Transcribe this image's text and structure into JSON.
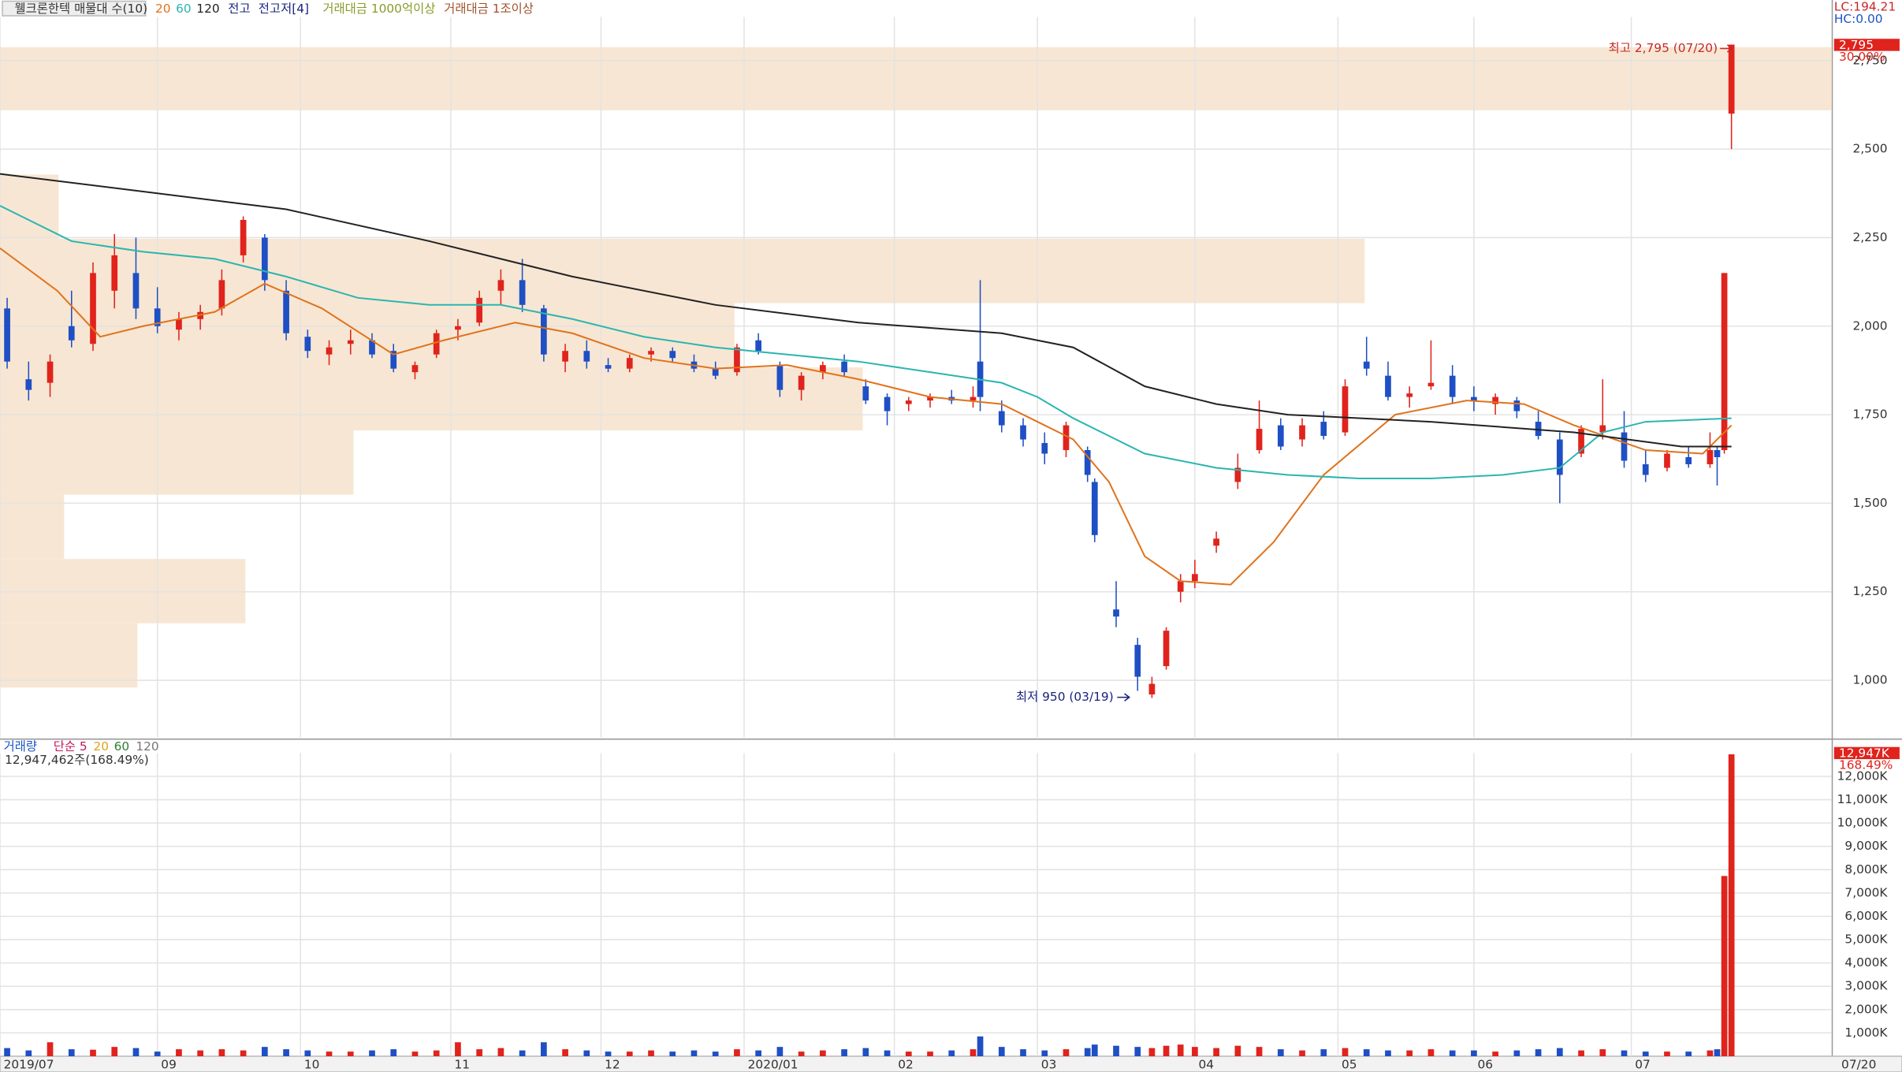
{
  "chart_data": {
    "type": "candlestick",
    "title": "웰크론한텍 매물대 수(10)",
    "legend_items": [
      "전고",
      "전고저[4]",
      "거래대금 1000억이상",
      "거래대금 1조이상"
    ],
    "lc_label": "LC:194.21",
    "hc_label": "HC:0.00",
    "annotations": [
      "최고 2,795 (07/20)",
      "최저 950 (03/19)"
    ],
    "last_price_label": "2,795",
    "last_change_label": "30.00%",
    "last_volume_label": "12,947K",
    "volume_ratio_label": "168.49%",
    "volume_legend": [
      "거래량",
      "단순 5",
      "20",
      "60",
      "120"
    ],
    "volume_info": "12,947,462주(168.49%)",
    "cursor_date": "07/20",
    "up_color": "#e0231c",
    "down_color": "#1f4fc4",
    "xlim": [
      0,
      256
    ],
    "xticks": [
      {
        "value": 0,
        "label": "2019/07"
      },
      {
        "value": 22,
        "label": "09"
      },
      {
        "value": 42,
        "label": "10"
      },
      {
        "value": 63,
        "label": "11"
      },
      {
        "value": 84,
        "label": "12"
      },
      {
        "value": 104,
        "label": "2020/01"
      },
      {
        "value": 125,
        "label": "02"
      },
      {
        "value": 145,
        "label": "03"
      },
      {
        "value": 167,
        "label": "04"
      },
      {
        "value": 187,
        "label": "05"
      },
      {
        "value": 206,
        "label": "06"
      },
      {
        "value": 228,
        "label": "07"
      }
    ],
    "ylim": [
      839,
      2873
    ],
    "yticks": [
      {
        "value": 1000,
        "label": "1,000"
      },
      {
        "value": 1250,
        "label": "1,250"
      },
      {
        "value": 1500,
        "label": "1,500"
      },
      {
        "value": 1750,
        "label": "1,750"
      },
      {
        "value": 2000,
        "label": "2,000"
      },
      {
        "value": 2250,
        "label": "2,250"
      },
      {
        "value": 2500,
        "label": "2,500"
      },
      {
        "value": 2750,
        "label": "2,750"
      }
    ],
    "volume_ylim": [
      0,
      13000
    ],
    "volume_yticks": [
      {
        "value": 1000,
        "label": "1,000K"
      },
      {
        "value": 2000,
        "label": "2,000K"
      },
      {
        "value": 3000,
        "label": "3,000K"
      },
      {
        "value": 4000,
        "label": "4,000K"
      },
      {
        "value": 5000,
        "label": "5,000K"
      },
      {
        "value": 6000,
        "label": "6,000K"
      },
      {
        "value": 7000,
        "label": "7,000K"
      },
      {
        "value": 8000,
        "label": "8,000K"
      },
      {
        "value": 9000,
        "label": "9,000K"
      },
      {
        "value": 10000,
        "label": "10,000K"
      },
      {
        "value": 11000,
        "label": "11,000K"
      },
      {
        "value": 12000,
        "label": "12,000K"
      }
    ],
    "volume_profile": {
      "color": "#f7e6d3",
      "xlim": [
        0,
        100
      ],
      "bins": [
        979.5,
        1161,
        1342.5,
        1524,
        1705.5,
        1883.6,
        2065,
        2246.6,
        2428,
        2609.6,
        2787.7
      ],
      "values": [
        7.5,
        13.4,
        3.5,
        19.3,
        47.1,
        40.1,
        74.5,
        3.2,
        0,
        100
      ]
    },
    "x": [
      1,
      4,
      7,
      10,
      13,
      16,
      19,
      22,
      25,
      28,
      31,
      34,
      37,
      40,
      43,
      46,
      49,
      52,
      55,
      58,
      61,
      64,
      67,
      70,
      73,
      76,
      79,
      82,
      85,
      88,
      91,
      94,
      97,
      100,
      103,
      106,
      109,
      112,
      115,
      118,
      121,
      124,
      127,
      130,
      133,
      136,
      137,
      140,
      143,
      146,
      149,
      152,
      153,
      156,
      159,
      161,
      163,
      165,
      167,
      170,
      173,
      176,
      179,
      182,
      185,
      188,
      191,
      194,
      197,
      200,
      203,
      206,
      209,
      212,
      215,
      218,
      221,
      224,
      227,
      230,
      233,
      236,
      239,
      240,
      241,
      242
    ],
    "candles": [
      [
        2050,
        2080,
        1880,
        1900
      ],
      [
        1850,
        1900,
        1790,
        1820
      ],
      [
        1840,
        1920,
        1800,
        1900
      ],
      [
        2000,
        2100,
        1940,
        1960
      ],
      [
        1950,
        2180,
        1930,
        2150
      ],
      [
        2100,
        2260,
        2050,
        2200
      ],
      [
        2150,
        2250,
        2020,
        2050
      ],
      [
        2050,
        2110,
        1980,
        2000
      ],
      [
        1990,
        2040,
        1960,
        2020
      ],
      [
        2020,
        2060,
        1990,
        2040
      ],
      [
        2050,
        2160,
        2030,
        2130
      ],
      [
        2200,
        2310,
        2180,
        2300
      ],
      [
        2250,
        2260,
        2100,
        2130
      ],
      [
        2100,
        2130,
        1960,
        1980
      ],
      [
        1970,
        1990,
        1910,
        1930
      ],
      [
        1920,
        1960,
        1890,
        1940
      ],
      [
        1950,
        1990,
        1920,
        1960
      ],
      [
        1960,
        1980,
        1910,
        1920
      ],
      [
        1930,
        1950,
        1870,
        1880
      ],
      [
        1870,
        1900,
        1850,
        1890
      ],
      [
        1920,
        1990,
        1910,
        1980
      ],
      [
        1990,
        2020,
        1960,
        2000
      ],
      [
        2010,
        2100,
        2000,
        2080
      ],
      [
        2100,
        2160,
        2060,
        2130
      ],
      [
        2130,
        2190,
        2040,
        2060
      ],
      [
        2050,
        2060,
        1900,
        1920
      ],
      [
        1900,
        1950,
        1870,
        1930
      ],
      [
        1930,
        1960,
        1880,
        1900
      ],
      [
        1890,
        1910,
        1870,
        1880
      ],
      [
        1880,
        1920,
        1870,
        1910
      ],
      [
        1920,
        1940,
        1900,
        1930
      ],
      [
        1930,
        1940,
        1900,
        1910
      ],
      [
        1900,
        1920,
        1870,
        1880
      ],
      [
        1880,
        1900,
        1850,
        1860
      ],
      [
        1870,
        1950,
        1860,
        1940
      ],
      [
        1960,
        1980,
        1920,
        1930
      ],
      [
        1890,
        1900,
        1800,
        1820
      ],
      [
        1820,
        1870,
        1790,
        1860
      ],
      [
        1870,
        1900,
        1850,
        1890
      ],
      [
        1900,
        1920,
        1860,
        1870
      ],
      [
        1830,
        1850,
        1780,
        1790
      ],
      [
        1800,
        1810,
        1720,
        1760
      ],
      [
        1780,
        1800,
        1760,
        1790
      ],
      [
        1790,
        1810,
        1770,
        1800
      ],
      [
        1800,
        1820,
        1780,
        1790
      ],
      [
        1790,
        1830,
        1770,
        1800
      ],
      [
        1900,
        2130,
        1760,
        1800
      ],
      [
        1760,
        1790,
        1700,
        1720
      ],
      [
        1720,
        1740,
        1660,
        1680
      ],
      [
        1670,
        1700,
        1610,
        1640
      ],
      [
        1650,
        1730,
        1630,
        1720
      ],
      [
        1650,
        1660,
        1560,
        1580
      ],
      [
        1560,
        1570,
        1390,
        1410
      ],
      [
        1200,
        1280,
        1150,
        1180
      ],
      [
        1100,
        1120,
        970,
        1010
      ],
      [
        960,
        1010,
        950,
        990
      ],
      [
        1040,
        1150,
        1030,
        1140
      ],
      [
        1250,
        1300,
        1220,
        1280
      ],
      [
        1280,
        1340,
        1260,
        1300
      ],
      [
        1380,
        1420,
        1360,
        1400
      ],
      [
        1560,
        1640,
        1540,
        1600
      ],
      [
        1650,
        1790,
        1640,
        1710
      ],
      [
        1720,
        1740,
        1650,
        1660
      ],
      [
        1680,
        1740,
        1660,
        1720
      ],
      [
        1730,
        1760,
        1680,
        1690
      ],
      [
        1700,
        1850,
        1690,
        1830
      ],
      [
        1900,
        1970,
        1860,
        1880
      ],
      [
        1860,
        1900,
        1790,
        1800
      ],
      [
        1800,
        1830,
        1770,
        1810
      ],
      [
        1830,
        1960,
        1820,
        1840
      ],
      [
        1860,
        1890,
        1780,
        1800
      ],
      [
        1800,
        1830,
        1760,
        1790
      ],
      [
        1780,
        1810,
        1750,
        1800
      ],
      [
        1790,
        1800,
        1740,
        1760
      ],
      [
        1730,
        1760,
        1680,
        1690
      ],
      [
        1680,
        1700,
        1500,
        1580
      ],
      [
        1640,
        1720,
        1630,
        1710
      ],
      [
        1700,
        1850,
        1680,
        1720
      ],
      [
        1700,
        1760,
        1600,
        1620
      ],
      [
        1610,
        1650,
        1560,
        1580
      ],
      [
        1600,
        1650,
        1590,
        1640
      ],
      [
        1630,
        1660,
        1600,
        1610
      ],
      [
        1610,
        1700,
        1600,
        1650
      ],
      [
        1650,
        1660,
        1550,
        1630
      ],
      [
        1650,
        2150,
        1640,
        2150
      ],
      [
        2600,
        2795,
        2500,
        2795
      ]
    ],
    "volume": [
      350,
      250,
      600,
      300,
      280,
      400,
      350,
      200,
      300,
      250,
      300,
      250,
      400,
      300,
      250,
      200,
      200,
      250,
      300,
      200,
      250,
      600,
      300,
      350,
      250,
      600,
      300,
      250,
      200,
      200,
      250,
      200,
      250,
      200,
      300,
      250,
      400,
      200,
      250,
      300,
      350,
      250,
      200,
      200,
      250,
      300,
      850,
      400,
      300,
      250,
      300,
      350,
      500,
      450,
      400,
      350,
      450,
      500,
      400,
      350,
      450,
      400,
      300,
      250,
      300,
      350,
      300,
      250,
      250,
      300,
      250,
      250,
      200,
      250,
      300,
      350,
      250,
      300,
      250,
      200,
      200,
      200,
      250,
      300,
      7730,
      12947
    ],
    "ma": [
      {
        "name": "20",
        "color": "#e0731c",
        "x": [
          0,
          8,
          14,
          20,
          30,
          37,
          45,
          55,
          62,
          72,
          80,
          90,
          100,
          110,
          120,
          130,
          140,
          145,
          150,
          155,
          160,
          165,
          172,
          178,
          185,
          195,
          205,
          213,
          220,
          230,
          238,
          242
        ],
        "values": [
          2220,
          2100,
          1970,
          2000,
          2040,
          2120,
          2050,
          1920,
          1960,
          2010,
          1980,
          1910,
          1880,
          1890,
          1850,
          1800,
          1780,
          1730,
          1680,
          1560,
          1350,
          1280,
          1270,
          1390,
          1580,
          1750,
          1790,
          1780,
          1720,
          1650,
          1640,
          1720
        ]
      },
      {
        "name": "60",
        "color": "#2bb5b0",
        "x": [
          0,
          10,
          20,
          30,
          40,
          50,
          60,
          70,
          80,
          90,
          100,
          110,
          120,
          130,
          140,
          145,
          150,
          160,
          170,
          180,
          190,
          200,
          210,
          218,
          224,
          230,
          242
        ],
        "values": [
          2340,
          2240,
          2210,
          2190,
          2140,
          2080,
          2060,
          2060,
          2020,
          1970,
          1940,
          1920,
          1900,
          1870,
          1840,
          1800,
          1740,
          1640,
          1600,
          1580,
          1570,
          1570,
          1580,
          1600,
          1700,
          1730,
          1740
        ]
      },
      {
        "name": "120",
        "color": "#222222",
        "x": [
          0,
          20,
          40,
          60,
          80,
          100,
          120,
          140,
          150,
          160,
          170,
          180,
          200,
          220,
          235,
          242
        ],
        "values": [
          2430,
          2380,
          2330,
          2240,
          2140,
          2060,
          2010,
          1980,
          1940,
          1830,
          1780,
          1750,
          1730,
          1700,
          1660,
          1660
        ]
      }
    ]
  }
}
